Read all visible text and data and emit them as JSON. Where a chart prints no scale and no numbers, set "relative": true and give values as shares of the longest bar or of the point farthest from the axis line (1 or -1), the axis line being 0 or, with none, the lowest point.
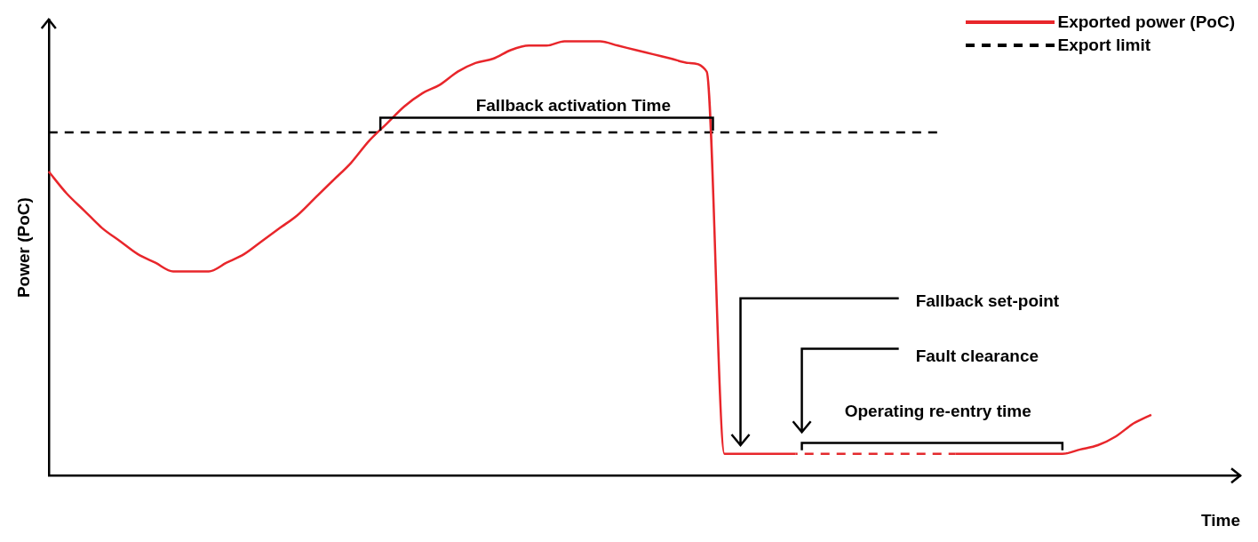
{
  "chart_data": {
    "type": "line",
    "relative": true,
    "xlabel": "Time",
    "ylabel": "Power (PoC)",
    "legend": "top right",
    "grid": false,
    "marker": "none",
    "categories": [
      null,
      null,
      null,
      null,
      null,
      null,
      null,
      null,
      null,
      null,
      null,
      null,
      null,
      null,
      null,
      null,
      null,
      null,
      null,
      null,
      null,
      null,
      null,
      null,
      null,
      null,
      null,
      null,
      null,
      null,
      null,
      null,
      null,
      null,
      null,
      null,
      null,
      null,
      null,
      null,
      null,
      null,
      null,
      null,
      null,
      null,
      null,
      null,
      null,
      null,
      null,
      null,
      null,
      null,
      null,
      null,
      null,
      null,
      null,
      null,
      null,
      null,
      null,
      null,
      null,
      null,
      null,
      null
    ],
    "series": [
      {
        "name": "Exported power (PoC)",
        "color": "#e8262b",
        "line_style": "solid",
        "values": [
          0.7,
          0.65,
          0.61,
          0.57,
          0.54,
          0.51,
          0.49,
          0.47,
          0.47,
          0.47,
          0.49,
          0.51,
          0.54,
          0.57,
          0.6,
          0.64,
          0.68,
          0.72,
          0.77,
          0.81,
          0.85,
          0.88,
          0.9,
          0.93,
          0.95,
          0.96,
          0.98,
          0.99,
          0.99,
          1,
          1,
          1,
          0.99,
          0.98,
          0.97,
          0.96,
          0.95,
          0.93,
          0.05,
          0.05,
          0.05,
          0.05,
          0.05,
          null,
          null,
          null,
          null,
          null,
          null,
          null,
          null,
          0.05,
          0.05,
          0.05,
          0.05,
          0.05,
          0.05,
          0.05,
          0.06,
          0.07,
          0.09,
          0.12,
          0.14,
          null,
          null,
          null,
          null,
          null
        ]
      },
      {
        "color": "#e32a2e",
        "line_style": "dashed",
        "values": [
          null,
          null,
          null,
          null,
          null,
          null,
          null,
          null,
          null,
          null,
          null,
          null,
          null,
          null,
          null,
          null,
          null,
          null,
          null,
          null,
          null,
          null,
          null,
          null,
          null,
          null,
          null,
          null,
          null,
          null,
          null,
          null,
          null,
          null,
          null,
          null,
          null,
          null,
          null,
          null,
          null,
          null,
          0.05,
          0.05,
          0.05,
          0.05,
          0.05,
          0.05,
          0.05,
          0.05,
          0.05,
          0.05,
          null,
          null,
          null,
          null,
          null,
          null,
          null,
          null,
          null,
          null,
          null,
          null,
          null,
          null,
          null,
          null
        ]
      },
      {
        "name": "Export limit",
        "color": "#000000",
        "line_style": "dashed",
        "values": [
          0.79,
          0.79,
          0.79,
          0.79,
          0.79,
          0.79,
          0.79,
          0.79,
          0.79,
          0.79,
          0.79,
          0.79,
          0.79,
          0.79,
          0.79,
          0.79,
          0.79,
          0.79,
          0.79,
          0.79,
          0.79,
          0.79,
          0.79,
          0.79,
          0.79,
          0.79,
          0.79,
          0.79,
          0.79,
          0.79,
          0.79,
          0.79,
          0.79,
          0.79,
          0.79,
          0.79,
          0.79,
          0.79,
          0.79,
          0.79,
          0.79,
          0.79,
          0.79,
          0.79,
          0.79,
          0.79,
          0.79,
          0.79,
          0.79,
          0.79,
          0.79,
          null,
          null,
          null,
          null,
          null,
          null,
          null,
          null,
          null,
          null,
          null,
          null,
          null,
          null,
          null,
          null,
          null
        ]
      }
    ],
    "annotations": [
      "Fallback activation Time",
      "Fallback set-point",
      "Fault clearance",
      "Operating re-entry time"
    ]
  }
}
